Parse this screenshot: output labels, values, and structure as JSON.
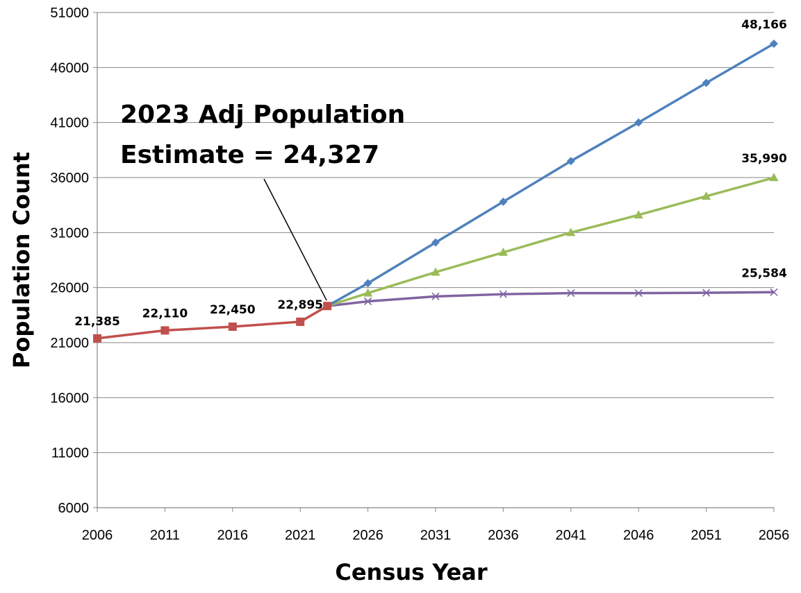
{
  "chart_data": {
    "type": "line",
    "title": "",
    "xlabel": "Census Year",
    "ylabel": "Population Count",
    "x_ticks": [
      "2006",
      "2011",
      "2016",
      "2021",
      "2026",
      "2031",
      "2036",
      "2041",
      "2046",
      "2051",
      "2056"
    ],
    "y_ticks": [
      "6000",
      "11000",
      "16000",
      "21000",
      "26000",
      "31000",
      "36000",
      "41000",
      "46000",
      "51000"
    ],
    "xlim": [
      2006,
      2056
    ],
    "ylim": [
      6000,
      51000
    ],
    "grid": "horizontal",
    "legend": "none",
    "annotation": {
      "lines": [
        "2023 Adj Population",
        "Estimate = 24,327"
      ],
      "points_to": {
        "x": 2023,
        "y": 24327
      }
    },
    "series": [
      {
        "color": "#C0504D",
        "marker": "square",
        "points": [
          {
            "x": 2006,
            "y": 21385
          },
          {
            "x": 2011,
            "y": 22110
          },
          {
            "x": 2016,
            "y": 22450
          },
          {
            "x": 2021,
            "y": 22895
          },
          {
            "x": 2023,
            "y": 24327
          }
        ],
        "labels": [
          {
            "x": 2006,
            "y": 21385,
            "text": "21,385"
          },
          {
            "x": 2011,
            "y": 22110,
            "text": "22,110"
          },
          {
            "x": 2016,
            "y": 22450,
            "text": "22,450"
          },
          {
            "x": 2021,
            "y": 22895,
            "text": "22,895"
          }
        ]
      },
      {
        "color": "#4F81BD",
        "marker": "diamond",
        "points": [
          {
            "x": 2023,
            "y": 24327
          },
          {
            "x": 2026,
            "y": 26400
          },
          {
            "x": 2031,
            "y": 30100
          },
          {
            "x": 2036,
            "y": 33800
          },
          {
            "x": 2041,
            "y": 37500
          },
          {
            "x": 2046,
            "y": 41000
          },
          {
            "x": 2051,
            "y": 44600
          },
          {
            "x": 2056,
            "y": 48166
          }
        ],
        "labels": [
          {
            "x": 2056,
            "y": 48166,
            "text": "48,166"
          }
        ]
      },
      {
        "color": "#9BBB59",
        "marker": "triangle",
        "points": [
          {
            "x": 2023,
            "y": 24327
          },
          {
            "x": 2026,
            "y": 25500
          },
          {
            "x": 2031,
            "y": 27400
          },
          {
            "x": 2036,
            "y": 29200
          },
          {
            "x": 2041,
            "y": 31000
          },
          {
            "x": 2046,
            "y": 32600
          },
          {
            "x": 2051,
            "y": 34300
          },
          {
            "x": 2056,
            "y": 35990
          }
        ],
        "labels": [
          {
            "x": 2056,
            "y": 35990,
            "text": "35,990"
          }
        ]
      },
      {
        "color": "#8064A2",
        "marker": "x",
        "points": [
          {
            "x": 2023,
            "y": 24327
          },
          {
            "x": 2026,
            "y": 24750
          },
          {
            "x": 2031,
            "y": 25200
          },
          {
            "x": 2036,
            "y": 25400
          },
          {
            "x": 2041,
            "y": 25500
          },
          {
            "x": 2046,
            "y": 25500
          },
          {
            "x": 2051,
            "y": 25530
          },
          {
            "x": 2056,
            "y": 25584
          }
        ],
        "labels": [
          {
            "x": 2056,
            "y": 25584,
            "text": "25,584"
          }
        ]
      }
    ]
  }
}
